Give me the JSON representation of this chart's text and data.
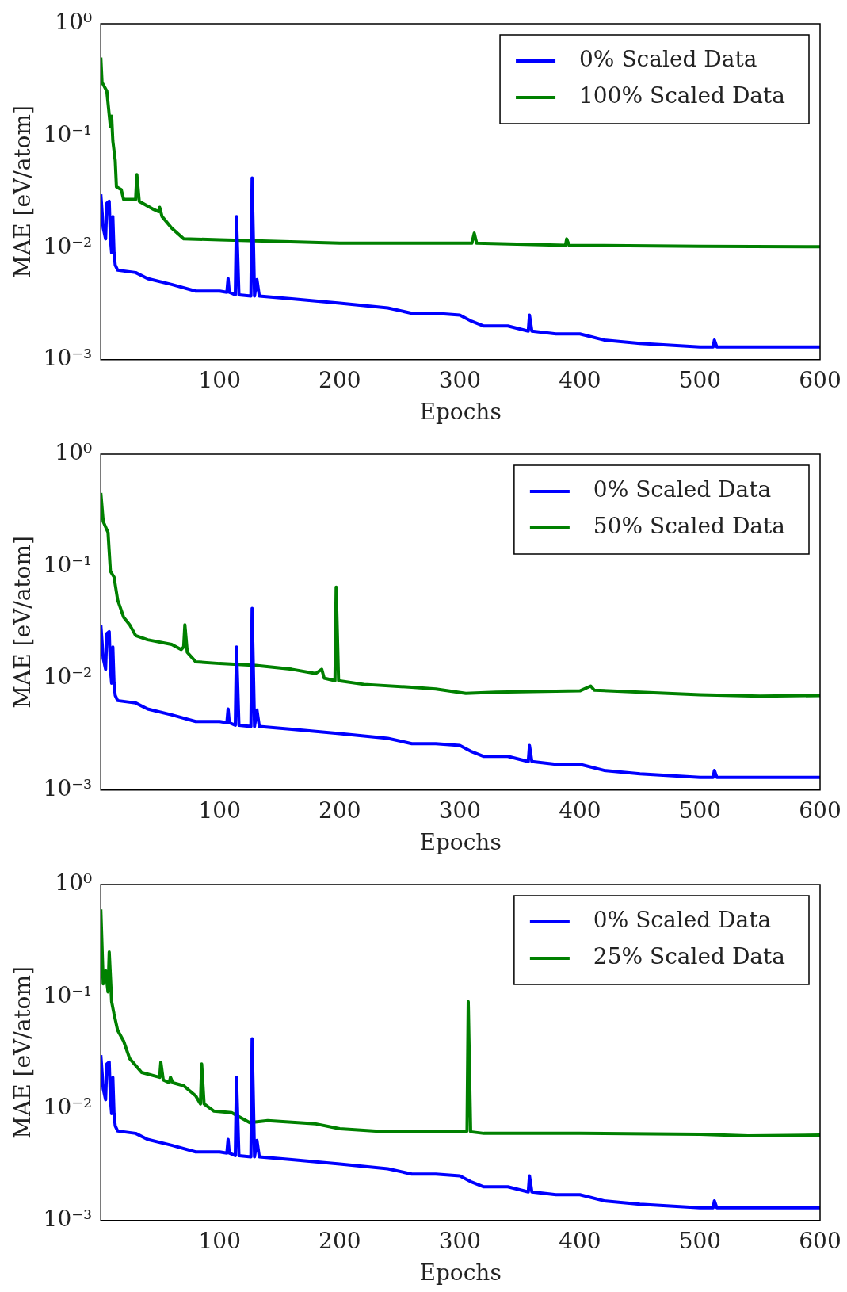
{
  "chart_data": [
    {
      "type": "line",
      "xlabel": "Epochs",
      "ylabel": "MAE [eV/atom]",
      "log": "y",
      "xlim": [
        1,
        600
      ],
      "xticks": [
        100,
        200,
        300,
        400,
        500,
        600
      ],
      "ylim": [
        0.001,
        1
      ],
      "yticks": [
        {
          "value": 0.001,
          "label": "10⁻³"
        },
        {
          "value": 0.01,
          "label": "10⁻²"
        },
        {
          "value": 0.1,
          "label": "10⁻¹"
        },
        {
          "value": 1,
          "label": "10⁰"
        }
      ],
      "legend": "top right",
      "series": [
        {
          "name": "0% Scaled Data",
          "color": "#0000ff",
          "x": [
            1,
            3,
            5,
            6,
            8,
            9,
            10,
            11,
            12,
            13,
            15,
            30,
            40,
            60,
            80,
            100,
            106,
            107,
            108,
            113,
            114,
            116,
            126,
            127,
            129,
            131,
            133,
            160,
            200,
            240,
            260,
            280,
            300,
            310,
            320,
            340,
            357,
            358,
            360,
            380,
            400,
            420,
            450,
            500,
            511,
            512,
            514,
            550,
            600
          ],
          "values": [
            0.03,
            0.015,
            0.012,
            0.025,
            0.026,
            0.012,
            0.009,
            0.019,
            0.009,
            0.007,
            0.0063,
            0.006,
            0.0053,
            0.0047,
            0.0041,
            0.0041,
            0.004,
            0.0053,
            0.004,
            0.0038,
            0.019,
            0.0038,
            0.0037,
            0.042,
            0.0037,
            0.0052,
            0.0037,
            0.0035,
            0.0032,
            0.0029,
            0.0026,
            0.0026,
            0.0025,
            0.0022,
            0.002,
            0.002,
            0.0018,
            0.0025,
            0.0018,
            0.0017,
            0.0017,
            0.0015,
            0.0014,
            0.0013,
            0.0013,
            0.0015,
            0.0013,
            0.0013,
            0.0013
          ]
        },
        {
          "name": "100% Scaled Data",
          "color": "#008000",
          "x": [
            1,
            2,
            6,
            9,
            10,
            11,
            13,
            14,
            18,
            20,
            30,
            31,
            33,
            45,
            49,
            50,
            52,
            60,
            70,
            100,
            200,
            310,
            312,
            314,
            388,
            389,
            391,
            500,
            600
          ],
          "values": [
            0.5,
            0.3,
            0.25,
            0.12,
            0.15,
            0.09,
            0.06,
            0.035,
            0.033,
            0.027,
            0.027,
            0.045,
            0.026,
            0.022,
            0.021,
            0.023,
            0.019,
            0.015,
            0.012,
            0.0118,
            0.011,
            0.011,
            0.0135,
            0.011,
            0.0105,
            0.012,
            0.0105,
            0.0103,
            0.0102
          ]
        }
      ]
    },
    {
      "type": "line",
      "xlabel": "Epochs",
      "ylabel": "MAE [eV/atom]",
      "log": "y",
      "xlim": [
        1,
        600
      ],
      "xticks": [
        100,
        200,
        300,
        400,
        500,
        600
      ],
      "ylim": [
        0.001,
        1
      ],
      "yticks": [
        {
          "value": 0.001,
          "label": "10⁻³"
        },
        {
          "value": 0.01,
          "label": "10⁻²"
        },
        {
          "value": 0.1,
          "label": "10⁻¹"
        },
        {
          "value": 1,
          "label": "10⁰"
        }
      ],
      "legend": "top right",
      "series": [
        {
          "name": "0% Scaled Data",
          "color": "#0000ff",
          "x": [
            1,
            3,
            5,
            6,
            8,
            9,
            10,
            11,
            12,
            13,
            15,
            30,
            40,
            60,
            80,
            100,
            106,
            107,
            108,
            113,
            114,
            116,
            126,
            127,
            129,
            131,
            133,
            160,
            200,
            240,
            260,
            280,
            300,
            310,
            320,
            340,
            357,
            358,
            360,
            380,
            400,
            420,
            450,
            500,
            511,
            512,
            514,
            550,
            600
          ],
          "values": [
            0.03,
            0.015,
            0.012,
            0.025,
            0.026,
            0.012,
            0.009,
            0.019,
            0.009,
            0.007,
            0.0063,
            0.006,
            0.0053,
            0.0047,
            0.0041,
            0.0041,
            0.004,
            0.0053,
            0.004,
            0.0038,
            0.019,
            0.0038,
            0.0037,
            0.042,
            0.0037,
            0.0052,
            0.0037,
            0.0035,
            0.0032,
            0.0029,
            0.0026,
            0.0026,
            0.0025,
            0.0022,
            0.002,
            0.002,
            0.0018,
            0.0025,
            0.0018,
            0.0017,
            0.0017,
            0.0015,
            0.0014,
            0.0013,
            0.0013,
            0.0015,
            0.0013,
            0.0013,
            0.0013
          ]
        },
        {
          "name": "50% Scaled Data",
          "color": "#008000",
          "x": [
            1,
            3,
            7,
            9,
            12,
            15,
            20,
            25,
            30,
            40,
            60,
            68,
            70,
            71,
            73,
            80,
            100,
            130,
            160,
            180,
            185,
            187,
            196,
            197,
            199,
            220,
            260,
            280,
            305,
            330,
            400,
            409,
            412,
            450,
            500,
            550,
            600
          ],
          "values": [
            0.45,
            0.25,
            0.2,
            0.09,
            0.08,
            0.05,
            0.035,
            0.03,
            0.024,
            0.022,
            0.02,
            0.018,
            0.019,
            0.03,
            0.017,
            0.014,
            0.0135,
            0.013,
            0.012,
            0.011,
            0.012,
            0.01,
            0.0095,
            0.065,
            0.0095,
            0.0088,
            0.0083,
            0.008,
            0.0073,
            0.0075,
            0.0077,
            0.0085,
            0.0078,
            0.0075,
            0.0071,
            0.0069,
            0.007
          ]
        }
      ]
    },
    {
      "type": "line",
      "xlabel": "Epochs",
      "ylabel": "MAE [eV/atom]",
      "log": "y",
      "xlim": [
        1,
        600
      ],
      "xticks": [
        100,
        200,
        300,
        400,
        500,
        600
      ],
      "ylim": [
        0.001,
        1
      ],
      "yticks": [
        {
          "value": 0.001,
          "label": "10⁻³"
        },
        {
          "value": 0.01,
          "label": "10⁻²"
        },
        {
          "value": 0.1,
          "label": "10⁻¹"
        },
        {
          "value": 1,
          "label": "10⁰"
        }
      ],
      "legend": "top right",
      "series": [
        {
          "name": "0% Scaled Data",
          "color": "#0000ff",
          "x": [
            1,
            3,
            5,
            6,
            8,
            9,
            10,
            11,
            12,
            13,
            15,
            30,
            40,
            60,
            80,
            100,
            106,
            107,
            108,
            113,
            114,
            116,
            126,
            127,
            129,
            131,
            133,
            160,
            200,
            240,
            260,
            280,
            300,
            310,
            320,
            340,
            357,
            358,
            360,
            380,
            400,
            420,
            450,
            500,
            511,
            512,
            514,
            550,
            600
          ],
          "values": [
            0.03,
            0.015,
            0.012,
            0.025,
            0.026,
            0.012,
            0.009,
            0.019,
            0.009,
            0.007,
            0.0063,
            0.006,
            0.0053,
            0.0047,
            0.0041,
            0.0041,
            0.004,
            0.0053,
            0.004,
            0.0038,
            0.019,
            0.0038,
            0.0037,
            0.042,
            0.0037,
            0.0052,
            0.0037,
            0.0035,
            0.0032,
            0.0029,
            0.0026,
            0.0026,
            0.0025,
            0.0022,
            0.002,
            0.002,
            0.0018,
            0.0025,
            0.0018,
            0.0017,
            0.0017,
            0.0015,
            0.0014,
            0.0013,
            0.0013,
            0.0015,
            0.0013,
            0.0013,
            0.0013
          ]
        },
        {
          "name": "25% Scaled Data",
          "color": "#008000",
          "x": [
            1,
            3,
            5,
            7,
            8,
            9,
            10,
            12,
            15,
            20,
            25,
            35,
            50,
            51,
            53,
            58,
            59,
            61,
            70,
            80,
            84,
            85,
            87,
            95,
            110,
            125,
            140,
            180,
            200,
            230,
            300,
            306,
            307,
            309,
            320,
            400,
            500,
            540,
            600
          ],
          "values": [
            0.6,
            0.13,
            0.17,
            0.11,
            0.25,
            0.15,
            0.09,
            0.07,
            0.05,
            0.04,
            0.028,
            0.021,
            0.019,
            0.026,
            0.018,
            0.017,
            0.019,
            0.017,
            0.016,
            0.013,
            0.011,
            0.025,
            0.011,
            0.0095,
            0.0092,
            0.0075,
            0.0078,
            0.0073,
            0.0066,
            0.0063,
            0.0063,
            0.0063,
            0.09,
            0.0062,
            0.006,
            0.006,
            0.0059,
            0.0057,
            0.0058
          ]
        }
      ]
    }
  ]
}
